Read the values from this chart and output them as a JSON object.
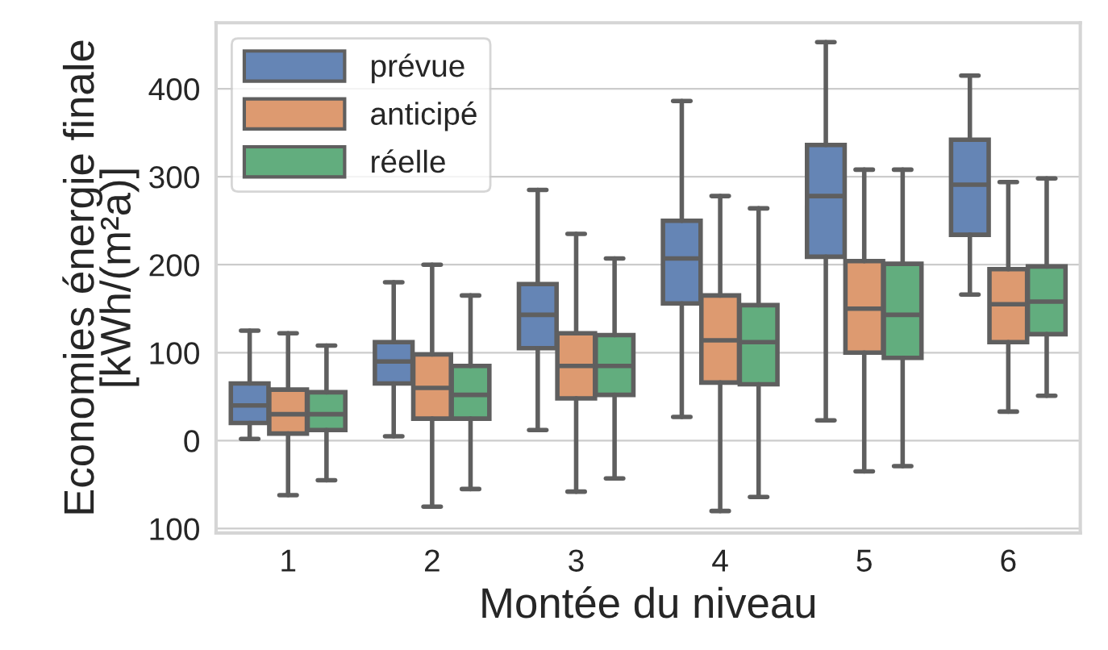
{
  "chart_data": {
    "type": "box",
    "xlabel": "Montée du niveau",
    "ylabel": "Economies énergie finale\n[kWh/(m²a)]",
    "categories": [
      "1",
      "2",
      "3",
      "4",
      "5",
      "6"
    ],
    "ylim": [
      -105,
      475
    ],
    "yticks": [
      {
        "value": -100,
        "label": "100"
      },
      0,
      100,
      200,
      300,
      400
    ],
    "grid": "y",
    "legend": "top left",
    "series": [
      {
        "name": "prévue",
        "color": "#6585b5",
        "boxes": [
          {
            "low": 2,
            "q1": 20,
            "median": 40,
            "q3": 65,
            "high": 125
          },
          {
            "low": 5,
            "q1": 65,
            "median": 90,
            "q3": 112,
            "high": 180
          },
          {
            "low": 12,
            "q1": 105,
            "median": 143,
            "q3": 178,
            "high": 285
          },
          {
            "low": 27,
            "q1": 156,
            "median": 207,
            "q3": 250,
            "high": 386
          },
          {
            "low": 23,
            "q1": 209,
            "median": 278,
            "q3": 336,
            "high": 453
          },
          {
            "low": 166,
            "q1": 234,
            "median": 291,
            "q3": 342,
            "high": 415
          }
        ]
      },
      {
        "name": "anticipé",
        "color": "#dd9a70",
        "boxes": [
          {
            "low": -62,
            "q1": 8,
            "median": 30,
            "q3": 58,
            "high": 122
          },
          {
            "low": -75,
            "q1": 25,
            "median": 60,
            "q3": 98,
            "high": 200
          },
          {
            "low": -58,
            "q1": 48,
            "median": 85,
            "q3": 122,
            "high": 235
          },
          {
            "low": -80,
            "q1": 66,
            "median": 114,
            "q3": 165,
            "high": 278
          },
          {
            "low": -35,
            "q1": 100,
            "median": 150,
            "q3": 204,
            "high": 308
          },
          {
            "low": 33,
            "q1": 112,
            "median": 155,
            "q3": 195,
            "high": 294
          }
        ]
      },
      {
        "name": "réelle",
        "color": "#62ad7e",
        "boxes": [
          {
            "low": -45,
            "q1": 12,
            "median": 30,
            "q3": 55,
            "high": 108
          },
          {
            "low": -55,
            "q1": 25,
            "median": 52,
            "q3": 85,
            "high": 165
          },
          {
            "low": -43,
            "q1": 52,
            "median": 85,
            "q3": 120,
            "high": 207
          },
          {
            "low": -64,
            "q1": 64,
            "median": 112,
            "q3": 154,
            "high": 264
          },
          {
            "low": -29,
            "q1": 94,
            "median": 143,
            "q3": 201,
            "high": 308
          },
          {
            "low": 51,
            "q1": 121,
            "median": 158,
            "q3": 198,
            "high": 298
          }
        ]
      }
    ]
  }
}
